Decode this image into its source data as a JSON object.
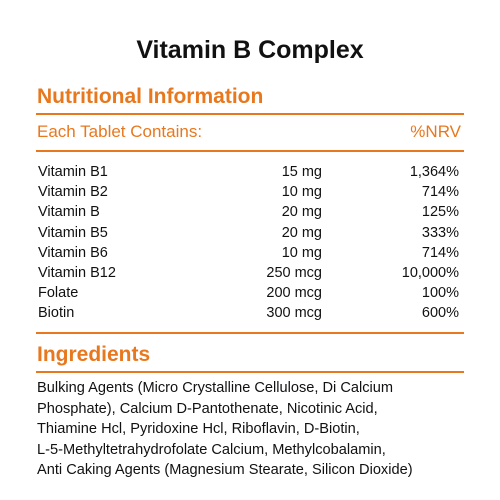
{
  "title": "Vitamin B Complex",
  "colors": {
    "accent": "#e8781e",
    "text": "#111111",
    "background": "#ffffff"
  },
  "nutritional": {
    "heading": "Nutritional Information",
    "contains_label": "Each Tablet Contains:",
    "nrv_label": "%NRV",
    "rows": [
      {
        "name": "Vitamin B1",
        "amount": "15 mg",
        "nrv": "1,364%"
      },
      {
        "name": "Vitamin B2",
        "amount": "10 mg",
        "nrv": "714%"
      },
      {
        "name": "Vitamin B",
        "amount": "20 mg",
        "nrv": "125%"
      },
      {
        "name": "Vitamin B5",
        "amount": "20 mg",
        "nrv": "333%"
      },
      {
        "name": "Vitamin B6",
        "amount": "10 mg",
        "nrv": "714%"
      },
      {
        "name": "Vitamin B12",
        "amount": "250 mcg",
        "nrv": "10,000%"
      },
      {
        "name": "Folate",
        "amount": "200 mcg",
        "nrv": "100%"
      },
      {
        "name": "Biotin",
        "amount": "300 mcg",
        "nrv": "600%"
      }
    ]
  },
  "ingredients": {
    "heading": "Ingredients",
    "lines": [
      "Bulking Agents (Micro Crystalline Cellulose, Di Calcium",
      "Phosphate), Calcium D-Pantothenate, Nicotinic Acid,",
      "Thiamine Hcl, Pyridoxine Hcl, Riboflavin, D-Biotin,",
      "L-5-Methyltetrahydrofolate Calcium, Methylcobalamin,",
      "Anti Caking Agents (Magnesium Stearate, Silicon Dioxide)"
    ]
  }
}
